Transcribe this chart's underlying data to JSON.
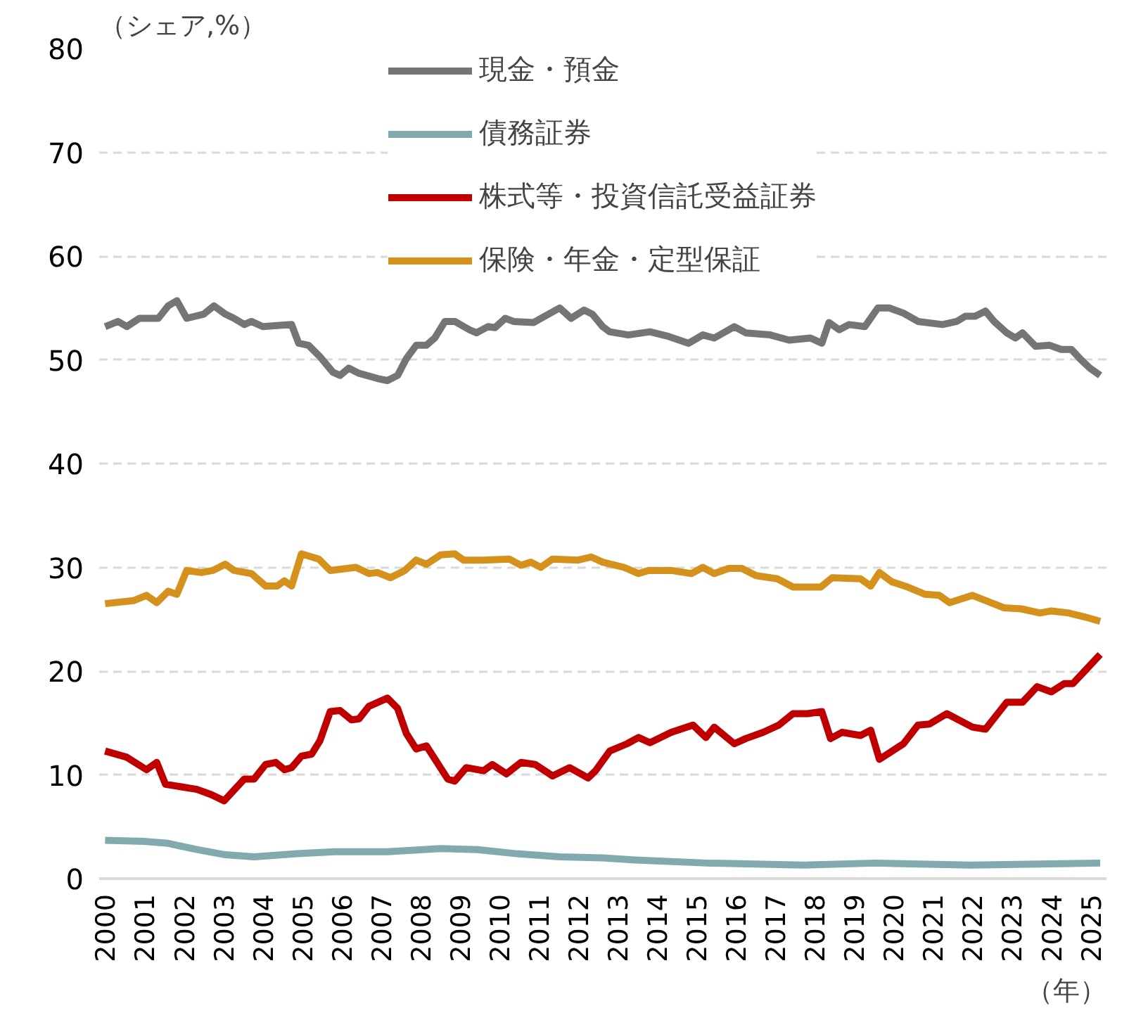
{
  "chart_data": {
    "type": "line",
    "xlabel": "（年）",
    "ylabel": "（シェア,%）",
    "xlim": [
      1999.85,
      2025.4
    ],
    "xticks": [
      2000,
      2001,
      2002,
      2003,
      2004,
      2005,
      2006,
      2007,
      2008,
      2009,
      2010,
      2011,
      2012,
      2013,
      2014,
      2015,
      2016,
      2017,
      2018,
      2019,
      2020,
      2021,
      2022,
      2023,
      2024,
      2025
    ],
    "ylim": [
      0,
      80
    ],
    "yticks": [
      0,
      10,
      20,
      30,
      40,
      50,
      60,
      70,
      80
    ],
    "grid": "y",
    "legend": "top",
    "line_style": "solid",
    "marker": "none",
    "series": [
      {
        "name": "現金・預金",
        "color": "#757575",
        "x": [
          2000.0,
          2000.33,
          2000.55,
          2000.87,
          2001.35,
          2001.6,
          2001.82,
          2002.07,
          2002.5,
          2002.76,
          2003.05,
          2003.27,
          2003.53,
          2003.71,
          2004.0,
          2004.73,
          2004.91,
          2005.16,
          2005.45,
          2005.78,
          2005.96,
          2006.18,
          2006.44,
          2006.91,
          2007.16,
          2007.42,
          2007.64,
          2007.89,
          2008.15,
          2008.36,
          2008.62,
          2008.87,
          2009.24,
          2009.42,
          2009.71,
          2009.89,
          2010.15,
          2010.36,
          2010.87,
          2011.53,
          2011.82,
          2012.15,
          2012.36,
          2012.62,
          2012.8,
          2013.27,
          2013.82,
          2014.25,
          2014.8,
          2015.16,
          2015.45,
          2015.96,
          2016.25,
          2016.87,
          2017.35,
          2017.89,
          2018.18,
          2018.36,
          2018.62,
          2018.87,
          2019.27,
          2019.6,
          2019.89,
          2020.25,
          2020.62,
          2021.24,
          2021.6,
          2021.82,
          2022.07,
          2022.33,
          2022.55,
          2022.87,
          2023.09,
          2023.27,
          2023.6,
          2023.96,
          2024.25,
          2024.51,
          2024.73,
          2024.98,
          2025.24
        ],
        "values": [
          53.2,
          53.7,
          53.2,
          54.0,
          54.0,
          55.2,
          55.7,
          54.0,
          54.4,
          55.2,
          54.4,
          54.0,
          53.4,
          53.7,
          53.2,
          53.4,
          51.6,
          51.4,
          50.3,
          48.8,
          48.5,
          49.2,
          48.7,
          48.2,
          48.0,
          48.5,
          50.1,
          51.4,
          51.4,
          52.1,
          53.7,
          53.7,
          52.9,
          52.6,
          53.2,
          53.1,
          54.0,
          53.7,
          53.6,
          55.0,
          54.0,
          54.8,
          54.4,
          53.2,
          52.7,
          52.4,
          52.7,
          52.3,
          51.6,
          52.4,
          52.1,
          53.2,
          52.6,
          52.4,
          51.9,
          52.1,
          51.6,
          53.6,
          52.9,
          53.4,
          53.2,
          55.0,
          55.0,
          54.5,
          53.7,
          53.4,
          53.7,
          54.2,
          54.2,
          54.7,
          53.7,
          52.6,
          52.1,
          52.6,
          51.3,
          51.4,
          51.0,
          51.0,
          50.1,
          49.2,
          48.5
        ]
      },
      {
        "name": "債務証券",
        "color": "#80aaad",
        "x": [
          2000.0,
          2000.98,
          2001.6,
          2002.33,
          2003.05,
          2003.78,
          2004.87,
          2005.82,
          2007.16,
          2008.51,
          2009.45,
          2010.44,
          2011.53,
          2012.62,
          2013.45,
          2015.27,
          2017.71,
          2019.53,
          2021.96,
          2025.24
        ],
        "values": [
          3.7,
          3.6,
          3.4,
          2.8,
          2.3,
          2.1,
          2.4,
          2.6,
          2.6,
          2.9,
          2.8,
          2.4,
          2.1,
          2.0,
          1.8,
          1.5,
          1.3,
          1.5,
          1.3,
          1.5
        ]
      },
      {
        "name": "株式等・投資信託受益証券",
        "color": "#c00000",
        "x": [
          2000.0,
          2000.55,
          2001.05,
          2001.31,
          2001.53,
          2002.33,
          2002.69,
          2003.02,
          2003.53,
          2003.78,
          2004.07,
          2004.33,
          2004.55,
          2004.73,
          2004.98,
          2005.24,
          2005.45,
          2005.71,
          2005.96,
          2006.25,
          2006.44,
          2006.69,
          2007.16,
          2007.42,
          2007.64,
          2007.89,
          2008.15,
          2008.69,
          2008.87,
          2009.16,
          2009.6,
          2009.82,
          2010.18,
          2010.55,
          2010.91,
          2011.35,
          2011.78,
          2012.25,
          2012.44,
          2012.8,
          2013.24,
          2013.53,
          2013.82,
          2014.36,
          2014.91,
          2015.24,
          2015.45,
          2015.96,
          2016.25,
          2016.69,
          2017.09,
          2017.45,
          2017.82,
          2018.18,
          2018.4,
          2018.69,
          2019.16,
          2019.42,
          2019.64,
          2020.25,
          2020.62,
          2020.91,
          2021.35,
          2022.0,
          2022.33,
          2022.87,
          2023.27,
          2023.64,
          2024.0,
          2024.33,
          2024.55,
          2024.87,
          2025.24
        ],
        "values": [
          12.3,
          11.7,
          10.5,
          11.2,
          9.1,
          8.6,
          8.1,
          7.5,
          9.6,
          9.6,
          11.0,
          11.2,
          10.5,
          10.7,
          11.8,
          12.0,
          13.3,
          16.1,
          16.2,
          15.3,
          15.4,
          16.6,
          17.4,
          16.4,
          14.0,
          12.5,
          12.8,
          9.6,
          9.4,
          10.7,
          10.4,
          11.0,
          10.1,
          11.2,
          11.0,
          9.9,
          10.7,
          9.7,
          10.4,
          12.3,
          13.0,
          13.6,
          13.1,
          14.1,
          14.8,
          13.6,
          14.6,
          13.0,
          13.5,
          14.1,
          14.8,
          15.9,
          15.9,
          16.1,
          13.5,
          14.1,
          13.8,
          14.3,
          11.5,
          13.0,
          14.8,
          14.9,
          15.9,
          14.6,
          14.4,
          17.0,
          17.0,
          18.5,
          18.0,
          18.8,
          18.8,
          20.1,
          21.6
        ]
      },
      {
        "name": "保険・年金・定型保証",
        "color": "#d4921c",
        "x": [
          2000.0,
          2000.73,
          2001.05,
          2001.31,
          2001.6,
          2001.82,
          2002.07,
          2002.44,
          2002.73,
          2003.05,
          2003.27,
          2003.71,
          2004.07,
          2004.36,
          2004.55,
          2004.73,
          2004.98,
          2005.42,
          2005.71,
          2006.36,
          2006.69,
          2006.91,
          2007.24,
          2007.6,
          2007.89,
          2008.15,
          2008.51,
          2008.87,
          2009.09,
          2009.6,
          2010.25,
          2010.55,
          2010.8,
          2011.05,
          2011.35,
          2012.0,
          2012.33,
          2012.62,
          2013.16,
          2013.53,
          2013.78,
          2014.36,
          2014.87,
          2015.16,
          2015.45,
          2015.82,
          2016.15,
          2016.51,
          2017.05,
          2017.45,
          2018.15,
          2018.44,
          2019.16,
          2019.42,
          2019.64,
          2019.96,
          2020.36,
          2020.8,
          2021.16,
          2021.42,
          2022.0,
          2022.33,
          2022.8,
          2023.24,
          2023.71,
          2024.0,
          2024.44,
          2024.87,
          2025.24
        ],
        "values": [
          26.5,
          26.8,
          27.3,
          26.6,
          27.7,
          27.4,
          29.7,
          29.5,
          29.7,
          30.3,
          29.7,
          29.4,
          28.2,
          28.2,
          28.7,
          28.2,
          31.3,
          30.8,
          29.7,
          30.0,
          29.4,
          29.5,
          29.0,
          29.7,
          30.7,
          30.3,
          31.2,
          31.3,
          30.7,
          30.7,
          30.8,
          30.2,
          30.5,
          30.0,
          30.8,
          30.7,
          31.0,
          30.5,
          30.0,
          29.4,
          29.7,
          29.7,
          29.4,
          30.0,
          29.4,
          29.9,
          29.9,
          29.2,
          28.9,
          28.1,
          28.1,
          29.0,
          28.9,
          28.2,
          29.5,
          28.6,
          28.1,
          27.4,
          27.3,
          26.6,
          27.3,
          26.8,
          26.1,
          26.0,
          25.6,
          25.8,
          25.6,
          25.2,
          24.8
        ]
      }
    ]
  }
}
